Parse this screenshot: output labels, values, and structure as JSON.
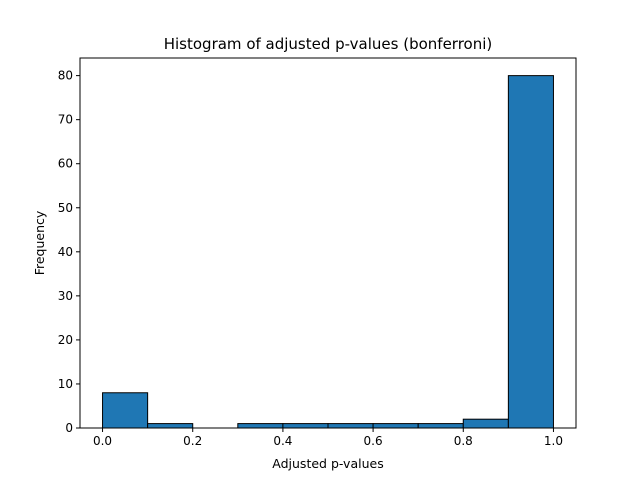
{
  "chart_data": {
    "type": "bar",
    "title": "Histogram of adjusted p-values (bonferroni)",
    "xlabel": "Adjusted p-values",
    "ylabel": "Frequency",
    "xlim": [
      -0.05,
      1.05
    ],
    "ylim": [
      0,
      84
    ],
    "bins": [
      {
        "start": 0.0,
        "end": 0.1,
        "count": 8
      },
      {
        "start": 0.1,
        "end": 0.2,
        "count": 1
      },
      {
        "start": 0.2,
        "end": 0.3,
        "count": 0
      },
      {
        "start": 0.3,
        "end": 0.4,
        "count": 1
      },
      {
        "start": 0.4,
        "end": 0.5,
        "count": 1
      },
      {
        "start": 0.5,
        "end": 0.6,
        "count": 1
      },
      {
        "start": 0.6,
        "end": 0.7,
        "count": 1
      },
      {
        "start": 0.7,
        "end": 0.8,
        "count": 1
      },
      {
        "start": 0.8,
        "end": 0.9,
        "count": 2
      },
      {
        "start": 0.9,
        "end": 1.0,
        "count": 80
      }
    ],
    "xticks": [
      0.0,
      0.2,
      0.4,
      0.6,
      0.8,
      1.0
    ],
    "xtick_labels": [
      "0.0",
      "0.2",
      "0.4",
      "0.6",
      "0.8",
      "1.0"
    ],
    "yticks": [
      0,
      10,
      20,
      30,
      40,
      50,
      60,
      70,
      80
    ],
    "ytick_labels": [
      "0",
      "10",
      "20",
      "30",
      "40",
      "50",
      "60",
      "70",
      "80"
    ],
    "grid": false,
    "bar_color": "#1f77b4",
    "edge_color": "#000000"
  }
}
